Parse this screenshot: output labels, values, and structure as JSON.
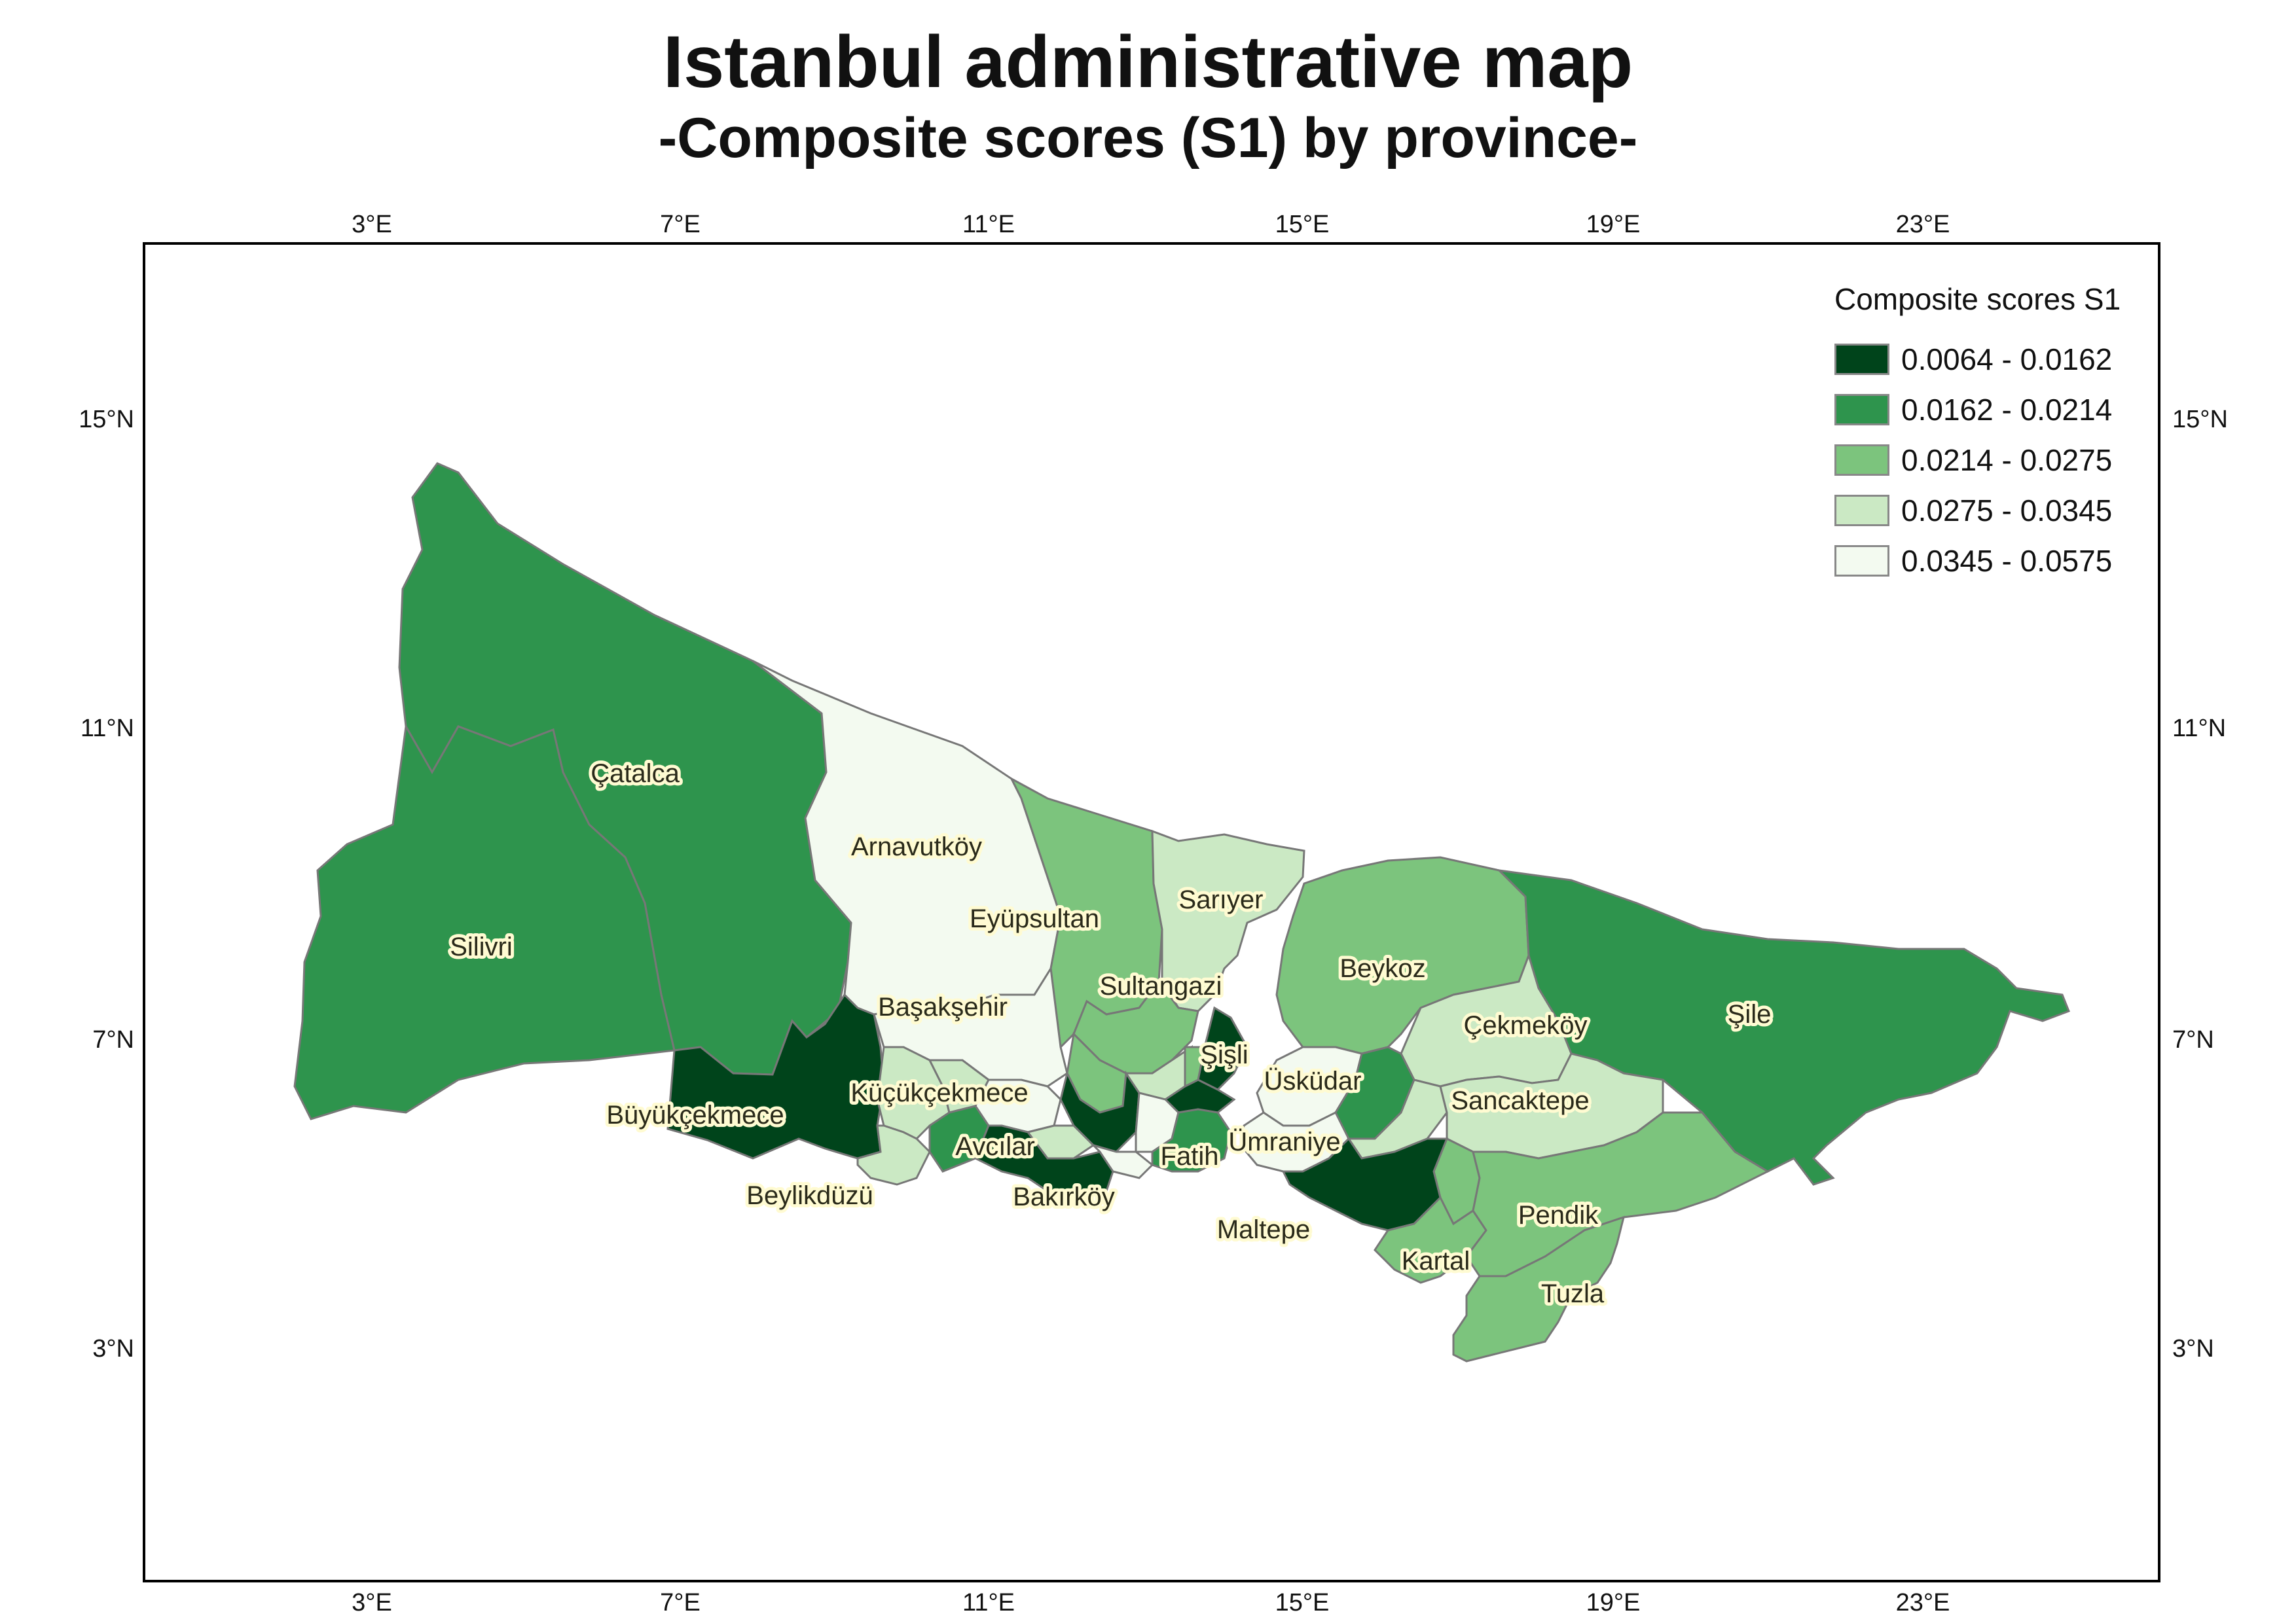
{
  "title": "Istanbul administrative map",
  "subtitle": "-Composite scores (S1) by province-",
  "axes": {
    "x_ticks": [
      "3°E",
      "7°E",
      "11°E",
      "15°E",
      "19°E",
      "23°E"
    ],
    "y_ticks": [
      "15°N",
      "11°N",
      "7°N",
      "3°N"
    ]
  },
  "legend": {
    "title": "Composite scores S1",
    "classes": [
      {
        "label": "0.0064 - 0.0162",
        "color": "#00441b"
      },
      {
        "label": "0.0162 - 0.0214",
        "color": "#2e944d"
      },
      {
        "label": "0.0214 - 0.0275",
        "color": "#7cc47d"
      },
      {
        "label": "0.0275 - 0.0345",
        "color": "#cbe9c4"
      },
      {
        "label": "0.0345 - 0.0575",
        "color": "#f3faf0"
      }
    ]
  },
  "districts": {
    "catalca": {
      "label": "Çatalca",
      "class": 1
    },
    "silivri": {
      "label": "Silivri",
      "class": 1
    },
    "arnavutkoy": {
      "label": "Arnavutköy",
      "class": 4
    },
    "eyupsultan": {
      "label": "Eyüpsultan",
      "class": 2
    },
    "sariyer": {
      "label": "Sarıyer",
      "class": 3
    },
    "beykoz": {
      "label": "Beykoz",
      "class": 2
    },
    "sile": {
      "label": "Şile",
      "class": 1
    },
    "sultangazi": {
      "label": "Sultangazi",
      "class": 2
    },
    "basaksehir": {
      "label": "Başakşehir",
      "class": 4
    },
    "cekmekoy": {
      "label": "Çekmeköy",
      "class": 3
    },
    "sisli": {
      "label": "Şişli",
      "class": 0
    },
    "uskudar": {
      "label": "Üsküdar",
      "class": 4
    },
    "sancaktepe": {
      "label": "Sancaktepe",
      "class": 3
    },
    "kucukcekmece": {
      "label": "Küçükçekmece",
      "class": 3
    },
    "buyukcekmece": {
      "label": "Büyükçekmece",
      "class": 0
    },
    "avcilar": {
      "label": "Avcılar",
      "class": 1
    },
    "fatih": {
      "label": "Fatih",
      "class": 1
    },
    "umraniye": {
      "label": "Ümraniye",
      "class": 1
    },
    "beylikduzu": {
      "label": "Beylikdüzü",
      "class": 3
    },
    "bakirkoy": {
      "label": "Bakırköy",
      "class": 0
    },
    "maltepe": {
      "label": "Maltepe",
      "class": 0
    },
    "pendik": {
      "label": "Pendik",
      "class": 2
    },
    "kartal": {
      "label": "Kartal",
      "class": 2
    },
    "tuzla": {
      "label": "Tuzla",
      "class": 2
    },
    "bagcilar": {
      "class": 0
    },
    "beyoglu": {
      "class": 0
    },
    "zeytinburnu": {
      "class": 4
    },
    "bayrampasa": {
      "class": 4
    },
    "gaziosmanpasa": {
      "class": 2
    },
    "kagithane": {
      "class": 3
    },
    "besiktas": {
      "class": 2
    },
    "kadikoy": {
      "class": 4
    },
    "atasehir": {
      "class": 3
    },
    "sultanbeyli": {
      "class": 2
    },
    "esenyurt": {
      "class": 3
    },
    "bahcelievler": {
      "class": 4
    },
    "gungoren": {
      "class": 3
    }
  }
}
